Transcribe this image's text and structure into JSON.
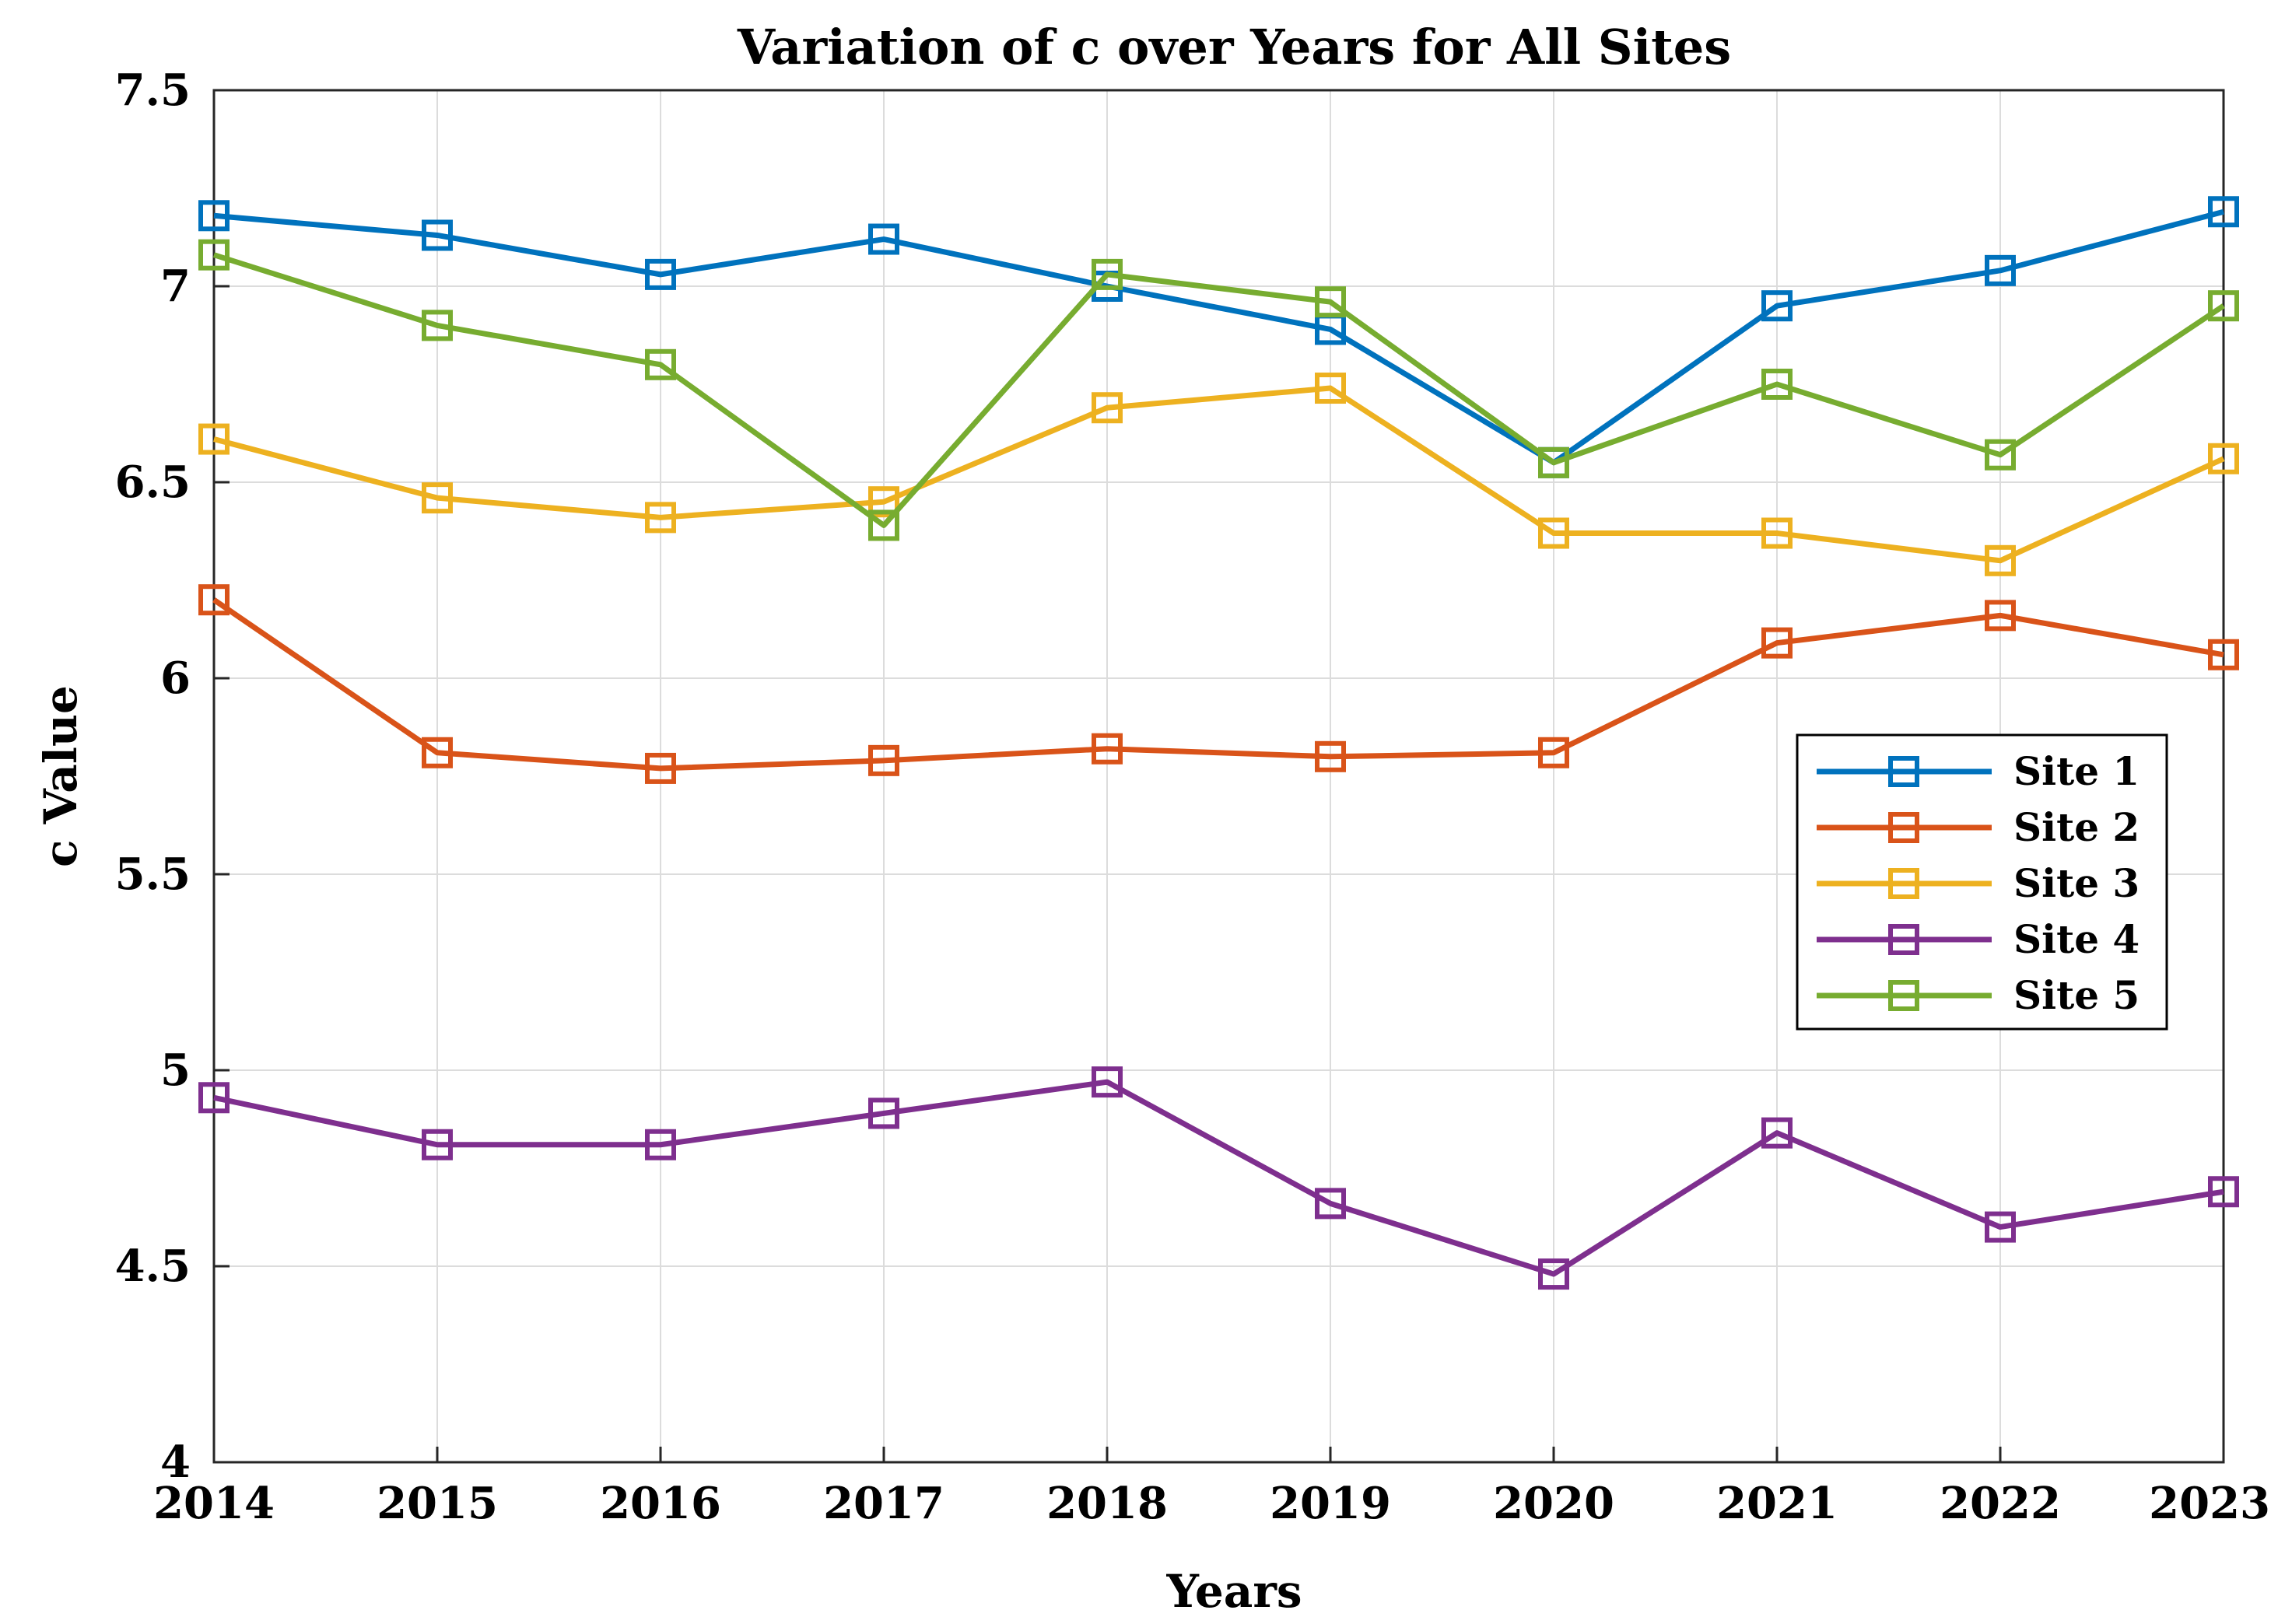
{
  "chart_data": {
    "type": "line",
    "title": "Variation of c over Years for All Sites",
    "xlabel": "Years",
    "ylabel": "c Value",
    "x": [
      2014,
      2015,
      2016,
      2017,
      2018,
      2019,
      2020,
      2021,
      2022,
      2023
    ],
    "x_tick_labels": [
      "2014",
      "2015",
      "2016",
      "2017",
      "2018",
      "2019",
      "2020",
      "2021",
      "2022",
      "2023"
    ],
    "ylim": [
      4,
      7.5
    ],
    "y_ticks": [
      4,
      4.5,
      5,
      5.5,
      6,
      6.5,
      7,
      7.5
    ],
    "y_tick_labels": [
      "4",
      "4.5",
      "5",
      "5.5",
      "6",
      "6.5",
      "7",
      "7.5"
    ],
    "grid": true,
    "legend_position": "right",
    "marker": "square",
    "series": [
      {
        "name": "Site 1",
        "color": "#0072BD",
        "values": [
          7.18,
          7.13,
          7.03,
          7.12,
          7.0,
          6.89,
          6.55,
          6.95,
          7.04,
          7.19
        ]
      },
      {
        "name": "Site 2",
        "color": "#D95319",
        "values": [
          6.2,
          5.81,
          5.77,
          5.79,
          5.82,
          5.8,
          5.81,
          6.09,
          6.16,
          6.06
        ]
      },
      {
        "name": "Site 3",
        "color": "#EDB120",
        "values": [
          6.61,
          6.46,
          6.41,
          6.45,
          6.69,
          6.74,
          6.37,
          6.37,
          6.3,
          6.56
        ]
      },
      {
        "name": "Site 4",
        "color": "#7E2F8E",
        "values": [
          4.93,
          4.81,
          4.81,
          4.89,
          4.97,
          4.66,
          4.48,
          4.84,
          4.6,
          4.69
        ]
      },
      {
        "name": "Site 5",
        "color": "#77AC30",
        "values": [
          7.08,
          6.9,
          6.8,
          6.39,
          7.03,
          6.96,
          6.55,
          6.75,
          6.57,
          6.95
        ]
      }
    ]
  }
}
